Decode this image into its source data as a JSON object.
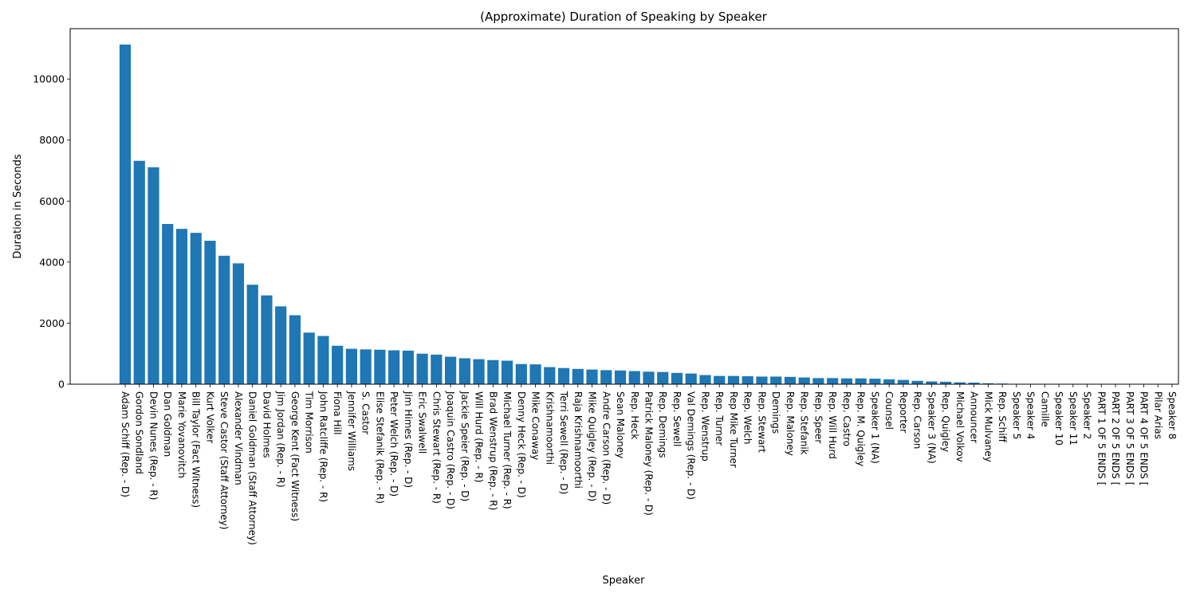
{
  "chart_data": {
    "type": "bar",
    "title": "(Approximate) Duration of Speaking by Speaker",
    "xlabel": "Speaker",
    "ylabel": "Duration in Seconds",
    "ylim": [
      0,
      11650
    ],
    "yticks": [
      0,
      2000,
      4000,
      6000,
      8000,
      10000
    ],
    "grid": false,
    "bar_color": "#1f77b4",
    "categories": [
      "Adam Schiff (Rep. - D)",
      "Gordon Sondland",
      "Devin Nunes (Rep. - R)",
      "Dan Goldman",
      "Marie Yovanovitch",
      "Bill Taylor (Fact Witness)",
      "Kurt Volker",
      "Steve Castor (Staff Attorney)",
      "Alexander Vindman",
      "Daniel Goldman (Staff Attorney)",
      "David Holmes",
      "Jim Jordan (Rep. - R)",
      "George Kent (Fact Witness)",
      "Tim Morrison",
      "John Ratcliffe (Rep. - R)",
      "Fiona Hill",
      "Jennifer Williams",
      "S. Castor",
      "Elise Stefanik (Rep. - R)",
      "Peter Welch (Rep. - D)",
      "Jim Himes (Rep. - D)",
      "Eric Swalwell",
      "Chris Stewart (Rep. - R)",
      "Joaquin Castro (Rep. - D)",
      "Jackie Speier (Rep. - D)",
      "Will Hurd (Rep. - R)",
      "Brad Wenstrup (Rep. - R)",
      "Michael Turner (Rep. - R)",
      "Denny Heck (Rep. - D)",
      "Mike Conaway",
      "Krishnamoorthi",
      "Terri Sewell (Rep. - D)",
      "Raja Krishnamoorthi",
      "Mike Quigley (Rep. - D)",
      "Andre Carson (Rep. - D)",
      "Sean Maloney",
      "Rep. Heck",
      "Patrick Maloney (Rep. - D)",
      "Rep. Demings",
      "Rep. Sewell",
      "Val Demings (Rep. - D)",
      "Rep. Wenstrup",
      "Rep. Turner",
      "Rep Mike Turner",
      "Rep. Welch",
      "Rep. Stewart",
      "Demings",
      "Rep. Maloney",
      "Rep. Stefanik",
      "Rep. Speer",
      "Rep. Will Hurd",
      "Rep. Castro",
      "Rep. M. Quigley",
      "Speaker 1 (NA)",
      "Counsel",
      "Reporter",
      "Rep. Carson",
      "Speaker 3 (NA)",
      "Rep. Quigley",
      "Michael Volkov",
      "Announcer",
      "Mick Mulvaney",
      "Rep. Schiff",
      "Speaker 5",
      "Speaker 4",
      "Camille",
      "Speaker 10",
      "Speaker 11",
      "Speaker 2",
      "PART 1 OF 5 ENDS [",
      "PART 2 OF 5 ENDS [",
      "PART 3 OF 5 ENDS [",
      "PART 4 OF 5 ENDS [",
      "Pilar Arias",
      "Speaker 8"
    ],
    "values": [
      11130,
      7320,
      7110,
      5250,
      5090,
      4960,
      4700,
      4210,
      3960,
      3260,
      2910,
      2550,
      2260,
      1690,
      1580,
      1260,
      1160,
      1140,
      1130,
      1110,
      1100,
      1000,
      970,
      900,
      850,
      820,
      790,
      770,
      660,
      650,
      560,
      530,
      500,
      480,
      460,
      450,
      430,
      410,
      400,
      370,
      350,
      300,
      270,
      270,
      260,
      250,
      250,
      240,
      220,
      200,
      200,
      190,
      190,
      180,
      160,
      140,
      110,
      90,
      80,
      60,
      50,
      30,
      20,
      10,
      10,
      8,
      6,
      5,
      5,
      4,
      4,
      4,
      4,
      3,
      3
    ]
  }
}
